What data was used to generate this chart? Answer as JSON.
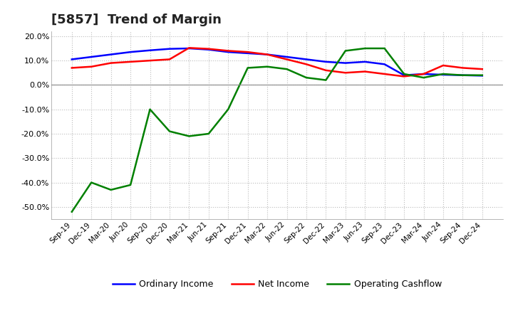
{
  "title": "[5857]  Trend of Margin",
  "x_labels": [
    "Sep-19",
    "Dec-19",
    "Mar-20",
    "Jun-20",
    "Sep-20",
    "Dec-20",
    "Mar-21",
    "Jun-21",
    "Sep-21",
    "Dec-21",
    "Mar-22",
    "Jun-22",
    "Sep-22",
    "Dec-22",
    "Mar-23",
    "Jun-23",
    "Sep-23",
    "Dec-23",
    "Mar-24",
    "Jun-24",
    "Sep-24",
    "Dec-24"
  ],
  "ordinary_income": [
    10.5,
    11.5,
    12.5,
    13.5,
    14.2,
    14.8,
    15.0,
    14.5,
    13.5,
    13.0,
    12.5,
    11.5,
    10.5,
    9.5,
    9.0,
    9.5,
    8.5,
    4.0,
    4.5,
    4.2,
    4.0,
    3.8
  ],
  "net_income": [
    7.0,
    7.5,
    9.0,
    9.5,
    10.0,
    10.5,
    15.2,
    14.8,
    14.0,
    13.5,
    12.5,
    10.5,
    8.5,
    6.0,
    5.0,
    5.5,
    4.5,
    3.5,
    4.5,
    8.0,
    7.0,
    6.5
  ],
  "operating_cashflow": [
    -52.0,
    -40.0,
    -43.0,
    -41.0,
    -10.0,
    -19.0,
    -21.0,
    -20.0,
    -10.0,
    7.0,
    7.5,
    6.5,
    3.0,
    2.0,
    14.0,
    15.0,
    15.0,
    4.5,
    3.0,
    4.5,
    4.0,
    4.0
  ],
  "ylim": [
    -55,
    22
  ],
  "yticks": [
    -50.0,
    -40.0,
    -30.0,
    -20.0,
    -10.0,
    0.0,
    10.0,
    20.0
  ],
  "colors": {
    "ordinary_income": "#0000FF",
    "net_income": "#FF0000",
    "operating_cashflow": "#008000"
  },
  "background_color": "#FFFFFF",
  "plot_bg_color": "#FFFFFF",
  "grid_color": "#BBBBBB",
  "title_fontsize": 13,
  "legend_labels": [
    "Ordinary Income",
    "Net Income",
    "Operating Cashflow"
  ]
}
